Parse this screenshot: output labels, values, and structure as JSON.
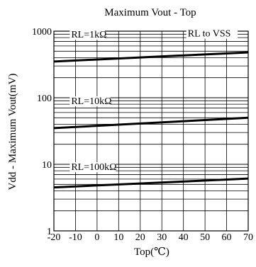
{
  "chart_data": {
    "type": "line",
    "title": "Maximum Vout - Top",
    "xlabel": "Top(℃)",
    "ylabel": "Vdd - Maximum Vout(mV)",
    "xlim": [
      -20,
      70
    ],
    "ylim": [
      1,
      1000
    ],
    "yscale": "log",
    "grid": true,
    "x_ticks": [
      "-20",
      "-10",
      "0",
      "10",
      "20",
      "30",
      "40",
      "50",
      "60",
      "70"
    ],
    "y_ticks": [
      "1",
      "10",
      "100",
      "1000"
    ],
    "annotations": [
      "RL to VSS"
    ],
    "series": [
      {
        "name": "RL=1kΩ",
        "x": [
          -20,
          70
        ],
        "y": [
          350,
          480
        ]
      },
      {
        "name": "RL=10kΩ",
        "x": [
          -20,
          70
        ],
        "y": [
          35,
          50
        ]
      },
      {
        "name": "RL=100kΩ",
        "x": [
          -20,
          70
        ],
        "y": [
          4.5,
          6.1
        ]
      }
    ]
  }
}
